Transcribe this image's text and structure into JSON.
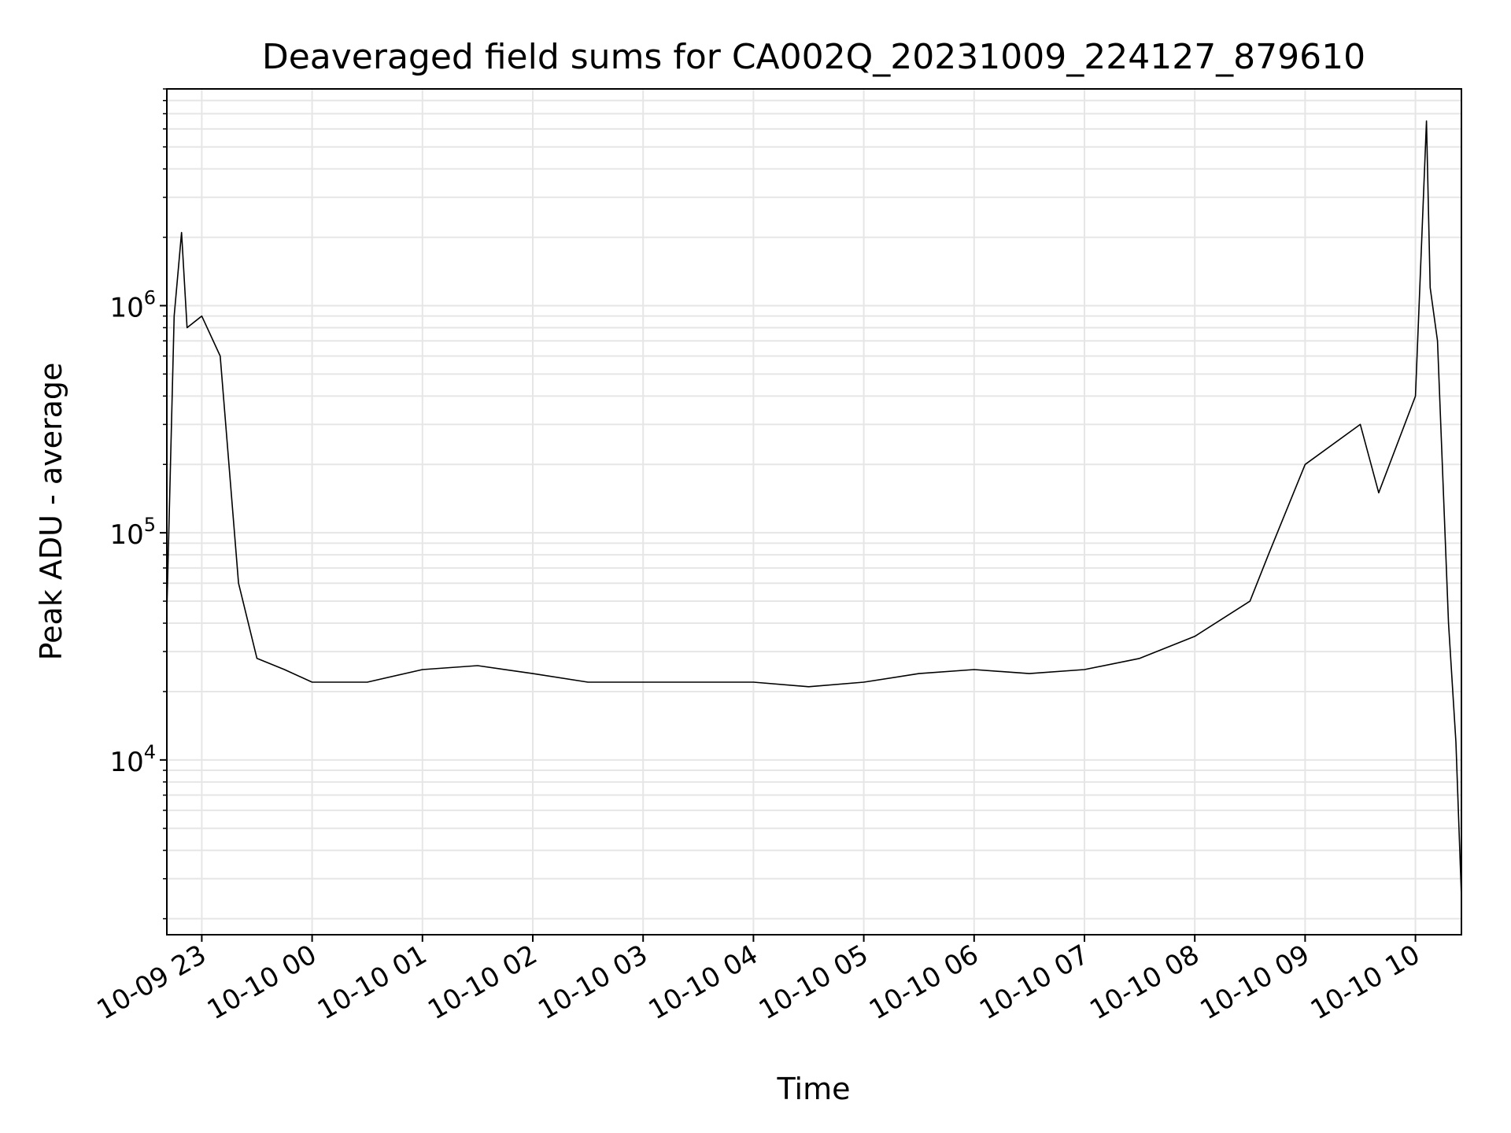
{
  "chart_data": {
    "type": "line",
    "title": "Deaveraged field sums for CA002Q_20231009_224127_879610",
    "xlabel": "Time",
    "ylabel": "Peak ADU - average",
    "yscale": "log",
    "ylim": [
      1700,
      9000000
    ],
    "xlim": [
      "2023-10-09 22:41",
      "2023-10-10 10:25"
    ],
    "grid": true,
    "line_color": "#000000",
    "grid_color": "#e6e6e6",
    "x_ticks": [
      {
        "value": "2023-10-09 23:00",
        "label": "10-09 23"
      },
      {
        "value": "2023-10-10 00:00",
        "label": "10-10 00"
      },
      {
        "value": "2023-10-10 01:00",
        "label": "10-10 01"
      },
      {
        "value": "2023-10-10 02:00",
        "label": "10-10 02"
      },
      {
        "value": "2023-10-10 03:00",
        "label": "10-10 03"
      },
      {
        "value": "2023-10-10 04:00",
        "label": "10-10 04"
      },
      {
        "value": "2023-10-10 05:00",
        "label": "10-10 05"
      },
      {
        "value": "2023-10-10 06:00",
        "label": "10-10 06"
      },
      {
        "value": "2023-10-10 07:00",
        "label": "10-10 07"
      },
      {
        "value": "2023-10-10 08:00",
        "label": "10-10 08"
      },
      {
        "value": "2023-10-10 09:00",
        "label": "10-10 09"
      },
      {
        "value": "2023-10-10 10:00",
        "label": "10-10 10"
      }
    ],
    "y_ticks": [
      {
        "value": 10000,
        "base": "10",
        "exp": "4"
      },
      {
        "value": 100000,
        "base": "10",
        "exp": "5"
      },
      {
        "value": 1000000,
        "base": "10",
        "exp": "6"
      }
    ],
    "series": [
      {
        "points": [
          [
            "2023-10-09 22:41",
            45000
          ],
          [
            "2023-10-09 22:45",
            900000
          ],
          [
            "2023-10-09 22:49",
            2100000
          ],
          [
            "2023-10-09 22:52",
            800000
          ],
          [
            "2023-10-09 23:00",
            900000
          ],
          [
            "2023-10-09 23:10",
            600000
          ],
          [
            "2023-10-09 23:20",
            60000
          ],
          [
            "2023-10-09 23:30",
            28000
          ],
          [
            "2023-10-09 23:45",
            25000
          ],
          [
            "2023-10-10 00:00",
            22000
          ],
          [
            "2023-10-10 00:30",
            22000
          ],
          [
            "2023-10-10 01:00",
            25000
          ],
          [
            "2023-10-10 01:30",
            26000
          ],
          [
            "2023-10-10 02:00",
            24000
          ],
          [
            "2023-10-10 02:30",
            22000
          ],
          [
            "2023-10-10 03:00",
            22000
          ],
          [
            "2023-10-10 03:30",
            22000
          ],
          [
            "2023-10-10 04:00",
            22000
          ],
          [
            "2023-10-10 04:30",
            21000
          ],
          [
            "2023-10-10 05:00",
            22000
          ],
          [
            "2023-10-10 05:30",
            24000
          ],
          [
            "2023-10-10 06:00",
            25000
          ],
          [
            "2023-10-10 06:30",
            24000
          ],
          [
            "2023-10-10 07:00",
            25000
          ],
          [
            "2023-10-10 07:30",
            28000
          ],
          [
            "2023-10-10 08:00",
            35000
          ],
          [
            "2023-10-10 08:30",
            50000
          ],
          [
            "2023-10-10 08:40",
            80000
          ],
          [
            "2023-10-10 09:00",
            200000
          ],
          [
            "2023-10-10 09:30",
            300000
          ],
          [
            "2023-10-10 09:40",
            150000
          ],
          [
            "2023-10-10 10:00",
            400000
          ],
          [
            "2023-10-10 10:06",
            6500000
          ],
          [
            "2023-10-10 10:08",
            1200000
          ],
          [
            "2023-10-10 10:12",
            700000
          ],
          [
            "2023-10-10 10:18",
            40000
          ],
          [
            "2023-10-10 10:22",
            12000
          ],
          [
            "2023-10-10 10:25",
            2500
          ]
        ]
      }
    ]
  }
}
